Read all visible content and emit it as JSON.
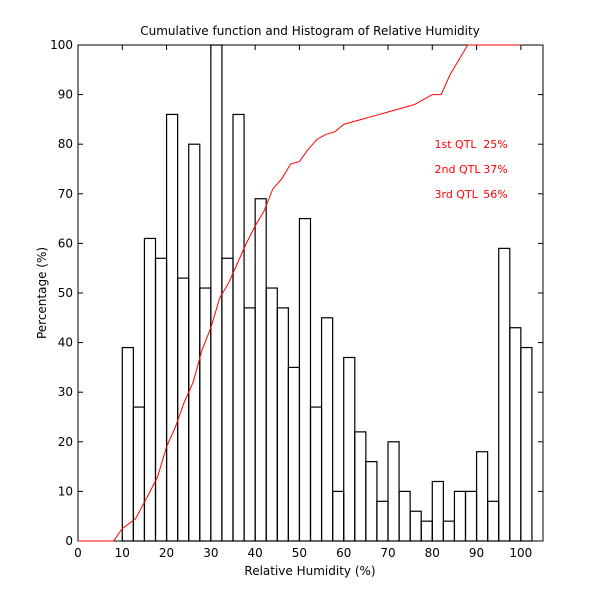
{
  "chart_data": {
    "type": "line",
    "title": "Cumulative function and Histogram of Relative Humidity",
    "xlabel": "Relative Humidity (%)",
    "ylabel": "Percentage (%)",
    "xlim": [
      0,
      105
    ],
    "ylim": [
      0,
      100
    ],
    "xticks": [
      0,
      10,
      20,
      30,
      40,
      50,
      60,
      70,
      80,
      90,
      100
    ],
    "yticks": [
      0,
      10,
      20,
      30,
      40,
      50,
      60,
      70,
      80,
      90,
      100
    ],
    "grid": false,
    "colors": {
      "histogram": "#000000",
      "cumulative": "#ff0000",
      "annotations": "#ff0000"
    },
    "series": [
      {
        "name": "Histogram",
        "kind": "stairs",
        "bins": [
          {
            "x0": 10,
            "x1": 12.5,
            "value": 39
          },
          {
            "x0": 12.5,
            "x1": 15,
            "value": 27
          },
          {
            "x0": 15,
            "x1": 17.5,
            "value": 61
          },
          {
            "x0": 17.5,
            "x1": 20,
            "value": 57
          },
          {
            "x0": 20,
            "x1": 22.5,
            "value": 86
          },
          {
            "x0": 22.5,
            "x1": 25,
            "value": 53
          },
          {
            "x0": 25,
            "x1": 27.5,
            "value": 80
          },
          {
            "x0": 27.5,
            "x1": 30,
            "value": 51
          },
          {
            "x0": 30,
            "x1": 32.5,
            "value": 100
          },
          {
            "x0": 32.5,
            "x1": 35,
            "value": 57
          },
          {
            "x0": 35,
            "x1": 37.5,
            "value": 86
          },
          {
            "x0": 37.5,
            "x1": 40,
            "value": 47
          },
          {
            "x0": 40,
            "x1": 42.5,
            "value": 69
          },
          {
            "x0": 42.5,
            "x1": 45,
            "value": 51
          },
          {
            "x0": 45,
            "x1": 47.5,
            "value": 47
          },
          {
            "x0": 47.5,
            "x1": 50,
            "value": 35
          },
          {
            "x0": 50,
            "x1": 52.5,
            "value": 65
          },
          {
            "x0": 52.5,
            "x1": 55,
            "value": 27
          },
          {
            "x0": 55,
            "x1": 57.5,
            "value": 45
          },
          {
            "x0": 57.5,
            "x1": 60,
            "value": 10
          },
          {
            "x0": 60,
            "x1": 62.5,
            "value": 37
          },
          {
            "x0": 62.5,
            "x1": 65,
            "value": 22
          },
          {
            "x0": 65,
            "x1": 67.5,
            "value": 16
          },
          {
            "x0": 67.5,
            "x1": 70,
            "value": 8
          },
          {
            "x0": 70,
            "x1": 72.5,
            "value": 20
          },
          {
            "x0": 72.5,
            "x1": 75,
            "value": 10
          },
          {
            "x0": 75,
            "x1": 77.5,
            "value": 6
          },
          {
            "x0": 77.5,
            "x1": 80,
            "value": 4
          },
          {
            "x0": 80,
            "x1": 82.5,
            "value": 12
          },
          {
            "x0": 82.5,
            "x1": 85,
            "value": 4
          },
          {
            "x0": 85,
            "x1": 87.5,
            "value": 10
          },
          {
            "x0": 87.5,
            "x1": 90,
            "value": 10
          },
          {
            "x0": 90,
            "x1": 92.5,
            "value": 18
          },
          {
            "x0": 92.5,
            "x1": 95,
            "value": 8
          },
          {
            "x0": 95,
            "x1": 97.5,
            "value": 59
          },
          {
            "x0": 97.5,
            "x1": 100,
            "value": 43
          },
          {
            "x0": 100,
            "x1": 102.5,
            "value": 39
          }
        ]
      },
      {
        "name": "Cumulative function",
        "kind": "line",
        "x": [
          0,
          8,
          10,
          13,
          16,
          18,
          20,
          22,
          24,
          26,
          28,
          30,
          32,
          34,
          36,
          38,
          40,
          42,
          44,
          46,
          48,
          50,
          52,
          54,
          56,
          58,
          60,
          62,
          64,
          66,
          68,
          70,
          72,
          74,
          76,
          78,
          80,
          82,
          84,
          86,
          88,
          90,
          92,
          94,
          96,
          98,
          100
        ],
        "y": [
          0,
          0,
          2.5,
          4.5,
          9.5,
          13,
          19,
          23,
          28,
          32,
          38.5,
          43,
          49,
          52,
          56,
          60,
          63.5,
          66.5,
          71,
          73,
          76,
          76.5,
          79,
          81,
          82,
          82.5,
          84,
          84.5,
          85,
          85.5,
          86,
          86.5,
          87,
          87.5,
          88,
          89,
          90,
          90,
          94,
          97,
          100,
          100,
          100,
          100,
          100,
          100,
          100
        ]
      }
    ],
    "annotations": [
      {
        "label": "1st QTL",
        "value": "25%"
      },
      {
        "label": "2nd QTL",
        "value": "37%"
      },
      {
        "label": "3rd QTL",
        "value": "56%"
      }
    ]
  }
}
